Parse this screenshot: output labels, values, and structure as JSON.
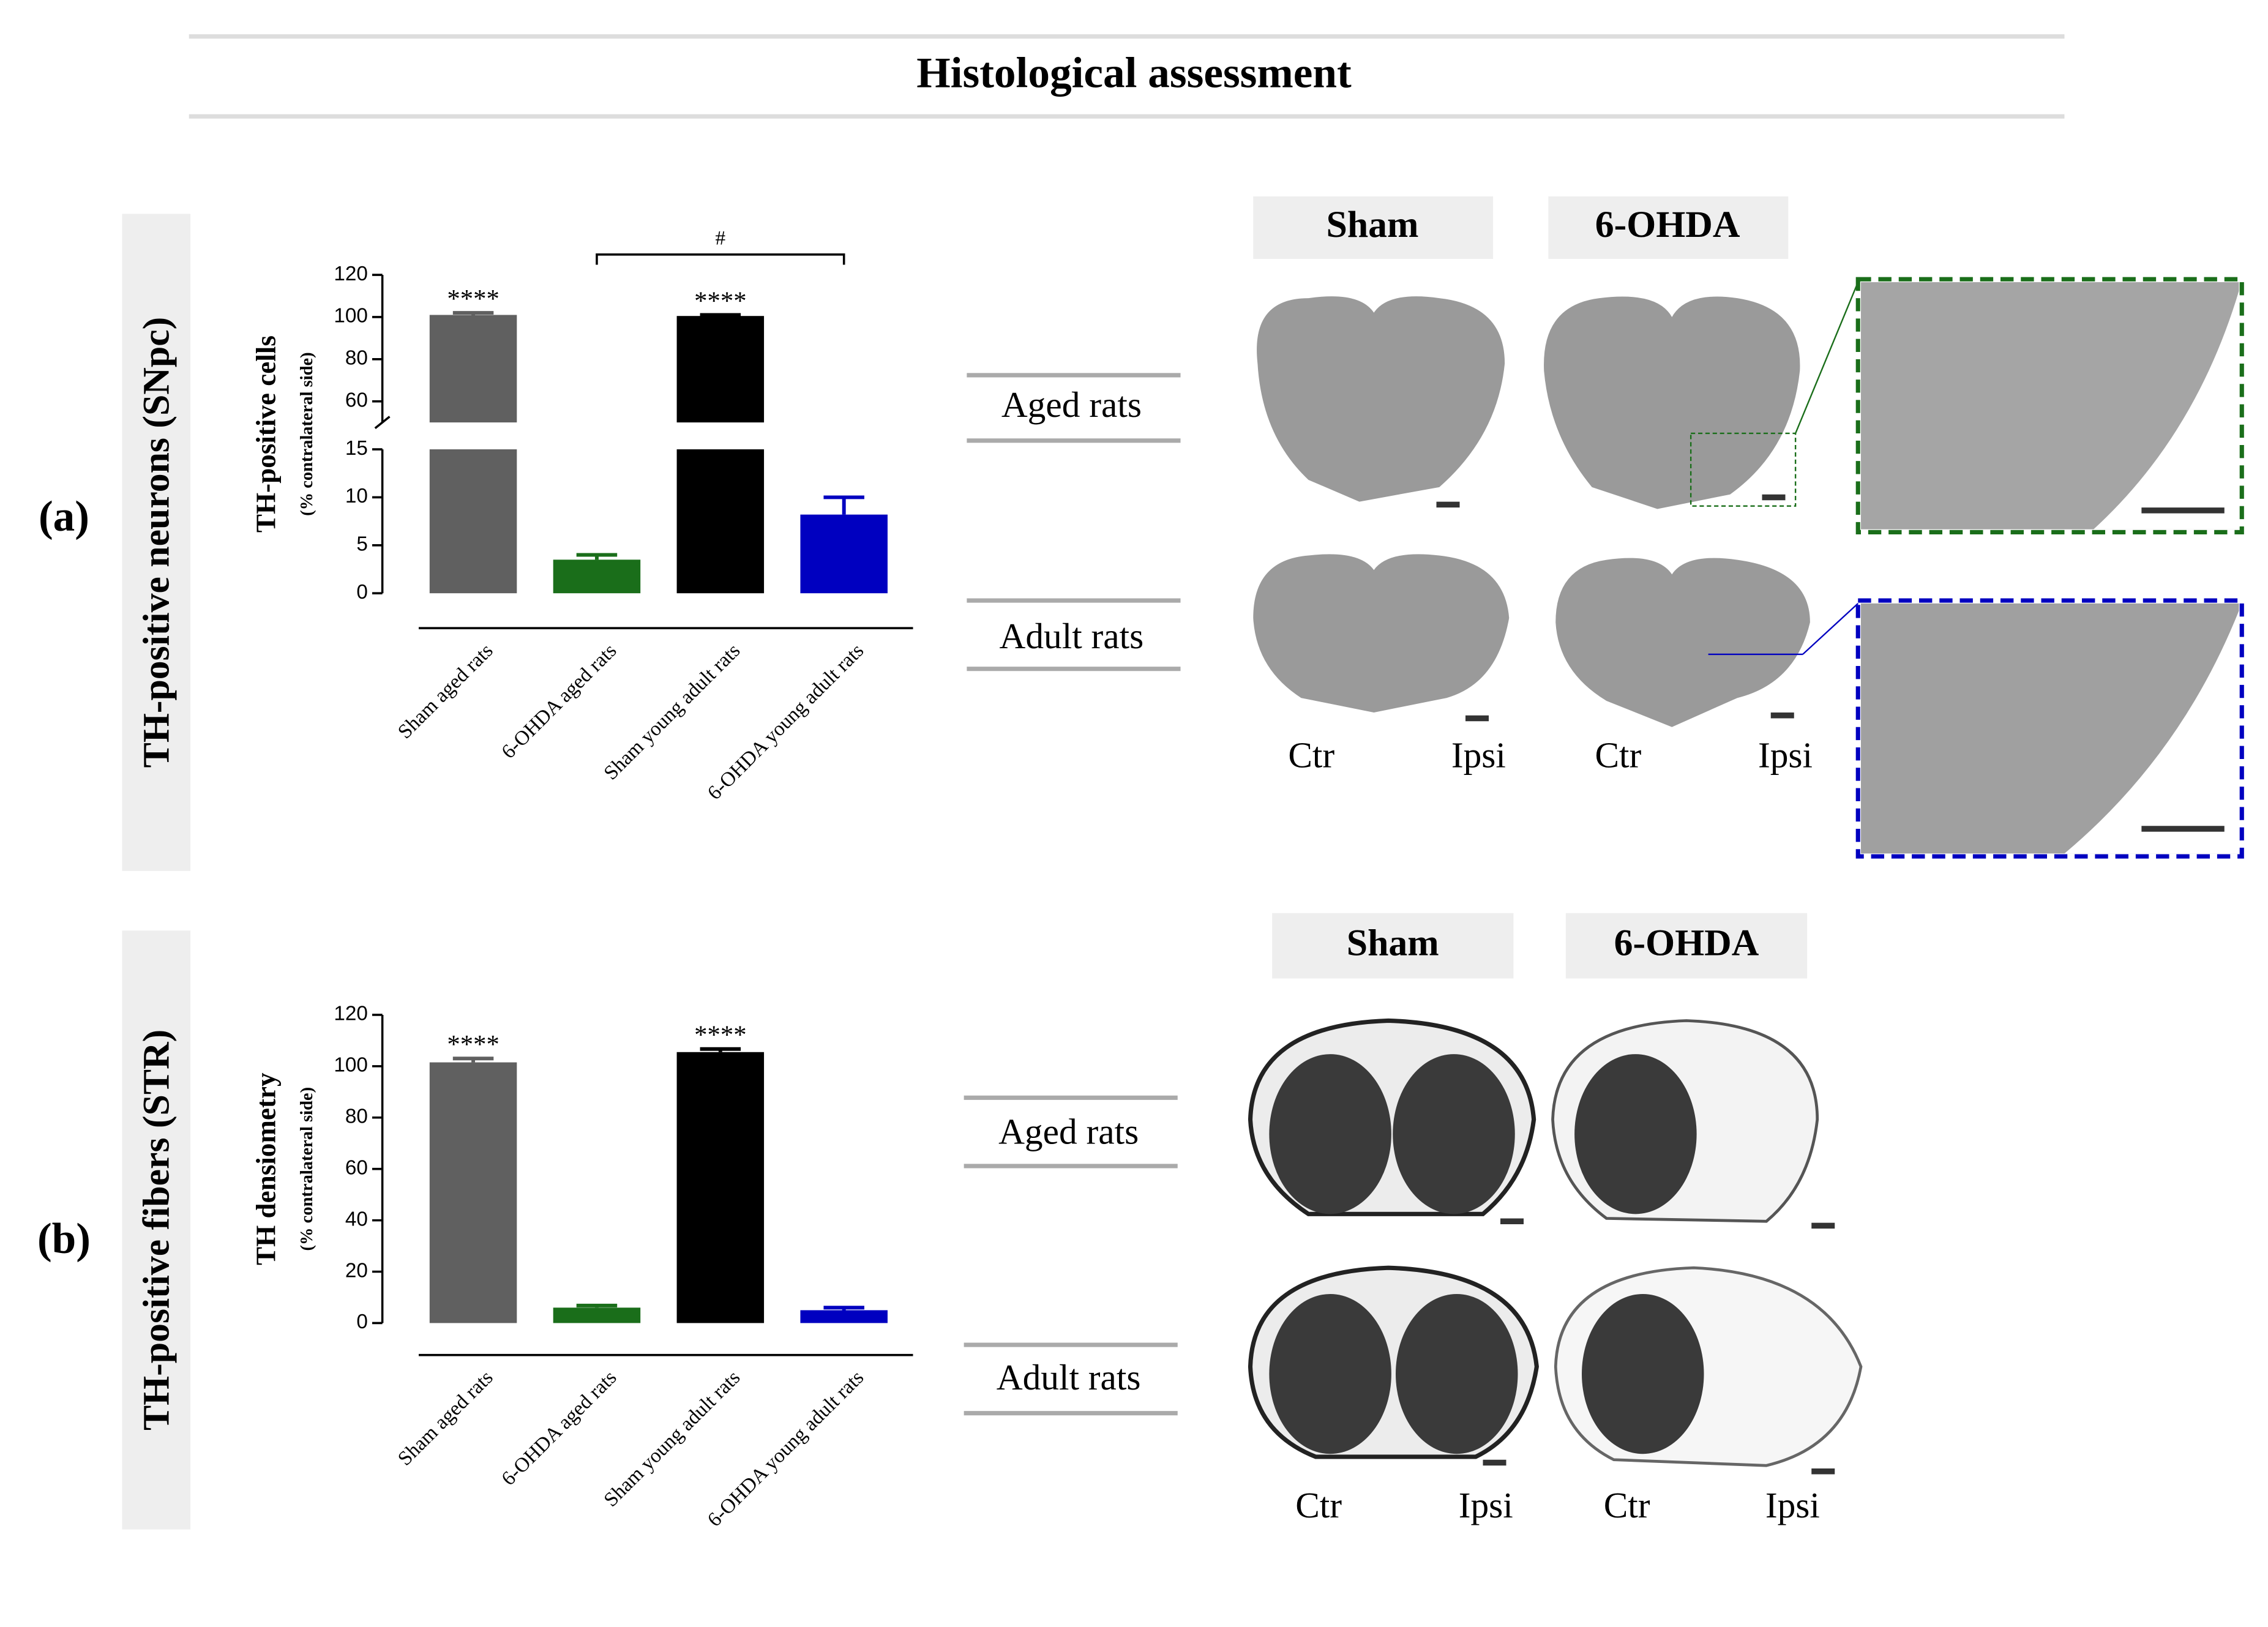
{
  "title": "Histological assessment",
  "panels": [
    {
      "label": "(a)",
      "side_label": "TH-positive neurons (SNpc)",
      "columns": [
        "Sham",
        "6-OHDA"
      ],
      "rows": [
        "Aged rats",
        "Adult rats"
      ],
      "sides": [
        "Ctr",
        "Ipsi"
      ]
    },
    {
      "label": "(b)",
      "side_label": "TH-positive fibers (STR)",
      "columns": [
        "Sham",
        "6-OHDA"
      ],
      "rows": [
        "Aged rats",
        "Adult rats"
      ],
      "sides": [
        "Ctr",
        "Ipsi"
      ]
    }
  ],
  "chart_data": [
    {
      "type": "bar",
      "y_label": "TH-positive cells",
      "y_sublabel": "(% contralateral side)",
      "categories": [
        "Sham aged rats",
        "6-OHDA aged rats",
        "Sham young adult rats",
        "6-OHDA young adult rats"
      ],
      "values": [
        101,
        3.5,
        100.5,
        8.2
      ],
      "errors": [
        1,
        0.5,
        0.5,
        1.8
      ],
      "colors": [
        "#606060",
        "#1a6e1a",
        "#000000",
        "#0000c0"
      ],
      "significance": [
        "****",
        null,
        "****",
        null
      ],
      "comparison": {
        "label": "#",
        "between": [
          "6-OHDA aged rats",
          "6-OHDA young adult rats"
        ]
      },
      "ylim": [
        0,
        15
      ],
      "yticks": [
        0,
        5,
        10,
        15
      ],
      "y_break": {
        "ylim": [
          50,
          120
        ],
        "yticks": [
          60,
          80,
          100,
          120
        ]
      }
    },
    {
      "type": "bar",
      "y_label": "TH densiometry",
      "y_sublabel": "(% contralateral side)",
      "categories": [
        "Sham aged rats",
        "6-OHDA aged rats",
        "Sham young adult rats",
        "6-OHDA young adult rats"
      ],
      "values": [
        101.5,
        6,
        105.5,
        5
      ],
      "errors": [
        1.5,
        0.8,
        1.2,
        1
      ],
      "colors": [
        "#606060",
        "#1a6e1a",
        "#000000",
        "#0000c0"
      ],
      "significance": [
        "****",
        null,
        "****",
        null
      ],
      "ylim": [
        0,
        120
      ],
      "yticks": [
        0,
        20,
        40,
        60,
        80,
        100,
        120
      ]
    }
  ]
}
